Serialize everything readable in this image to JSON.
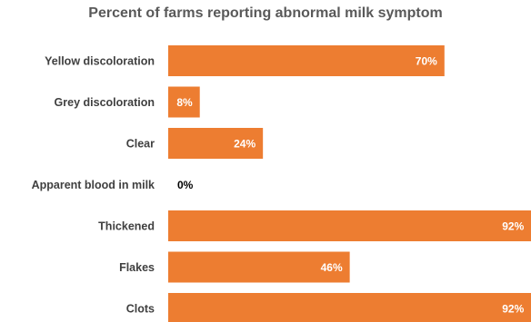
{
  "chart_data": {
    "type": "bar",
    "orientation": "horizontal",
    "title": "Percent of farms reporting abnormal milk symptom",
    "categories": [
      "Yellow discoloration",
      "Grey discoloration",
      "Clear",
      "Apparent blood in milk",
      "Thickened",
      "Flakes",
      "Clots"
    ],
    "values": [
      70,
      8,
      24,
      0,
      92,
      46,
      92
    ],
    "value_labels": [
      "70%",
      "8%",
      "24%",
      "0%",
      "92%",
      "46%",
      "92%"
    ],
    "xlim": [
      0,
      100
    ],
    "grid": false,
    "legend": "none",
    "bar_color": "#ED7D31"
  }
}
